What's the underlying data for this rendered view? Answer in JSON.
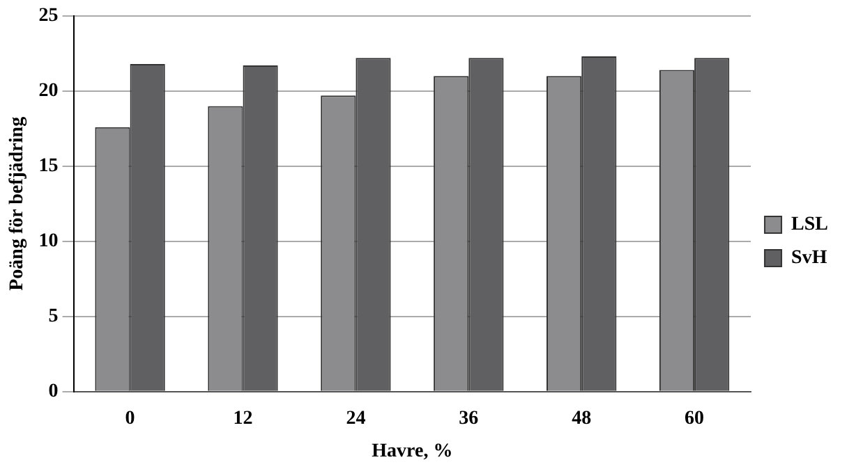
{
  "chart_data": {
    "type": "bar",
    "xlabel": "Havre, %",
    "ylabel": "Poäng för befjädring",
    "categories": [
      "0",
      "12",
      "24",
      "36",
      "48",
      "60"
    ],
    "series": [
      {
        "name": "LSL",
        "color": "#8c8c8f",
        "values": [
          17.6,
          19.0,
          19.7,
          21.0,
          21.0,
          21.4
        ]
      },
      {
        "name": "SvH",
        "color": "#606063",
        "values": [
          21.8,
          21.7,
          22.2,
          22.2,
          22.3,
          22.2
        ]
      }
    ],
    "ylim": [
      0,
      25
    ],
    "yticks": [
      0,
      5,
      10,
      15,
      20,
      25
    ],
    "grid": "y",
    "legend": "right"
  }
}
